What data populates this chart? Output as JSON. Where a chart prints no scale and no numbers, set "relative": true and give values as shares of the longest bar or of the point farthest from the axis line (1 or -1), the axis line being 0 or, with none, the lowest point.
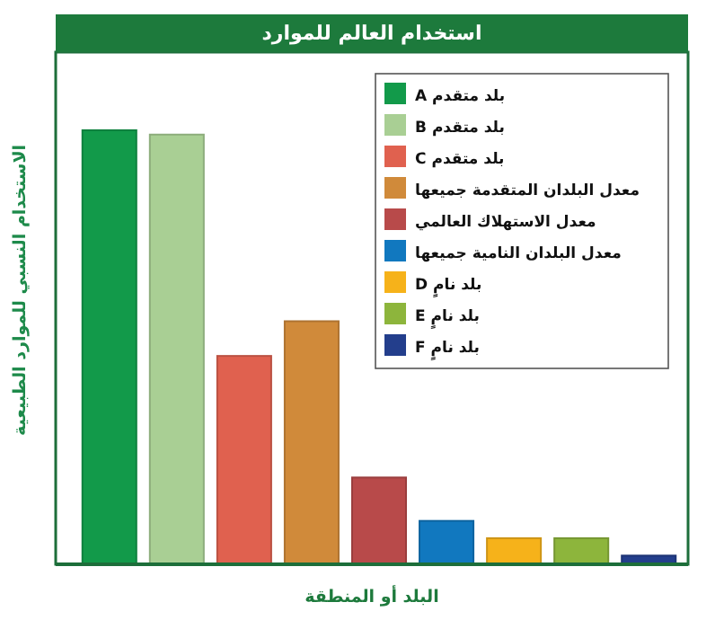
{
  "chart_data": {
    "type": "bar",
    "title": "استخدام العالم للموارد",
    "xlabel": "البلد أو المنطقة",
    "ylabel": "الاستخدام النسبي للموارد الطبيعية",
    "relative": true,
    "legend": "top right",
    "stacked": true,
    "categories": [
      null,
      null,
      null,
      null,
      null,
      null,
      null,
      null,
      null
    ],
    "series": [
      {
        "name": "بلد متقدم A",
        "color": "#129a4a",
        "values": [
          1,
          null,
          null,
          null,
          null,
          null,
          null,
          null,
          null
        ]
      },
      {
        "name": "بلد متقدم B",
        "color": "#a9cf94",
        "values": [
          null,
          0.99,
          null,
          null,
          null,
          null,
          null,
          null,
          null
        ]
      },
      {
        "name": "بلد متقدم C",
        "color": "#e0614f",
        "values": [
          null,
          null,
          0.48,
          null,
          null,
          null,
          null,
          null,
          null
        ]
      },
      {
        "name": "معدل البلدان المتقدمة جميعها",
        "color": "#d08a3a",
        "values": [
          null,
          null,
          null,
          0.56,
          null,
          null,
          null,
          null,
          null
        ]
      },
      {
        "name": "معدل الاستهلاك العالمي",
        "color": "#b84a4a",
        "values": [
          null,
          null,
          null,
          null,
          0.2,
          null,
          null,
          null,
          null
        ]
      },
      {
        "name": "معدل البلدان النامية جميعها",
        "color": "#1178bf",
        "values": [
          null,
          null,
          null,
          null,
          null,
          0.1,
          null,
          null,
          null
        ]
      },
      {
        "name": "بلد نامٍ D",
        "color": "#f6b21a",
        "values": [
          null,
          null,
          null,
          null,
          null,
          null,
          0.06,
          null,
          null
        ]
      },
      {
        "name": "بلد نامٍ E",
        "color": "#8db53c",
        "values": [
          null,
          null,
          null,
          null,
          null,
          null,
          null,
          0.06,
          null
        ]
      },
      {
        "name": "بلد نامٍ F",
        "color": "#233e8c",
        "values": [
          null,
          null,
          null,
          null,
          null,
          null,
          null,
          null,
          0.02
        ]
      }
    ]
  }
}
